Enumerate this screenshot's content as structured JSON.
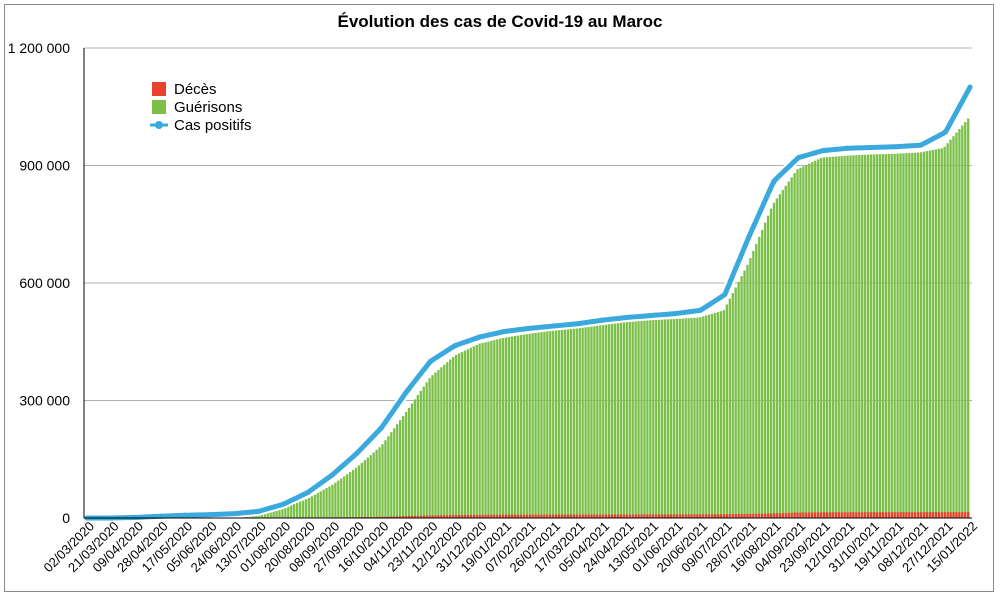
{
  "chart_data": {
    "type": "bar",
    "title": "Évolution des cas de Covid-19 au Maroc",
    "xlabel": "",
    "ylabel": "",
    "ylim": [
      0,
      1200000
    ],
    "y_ticks": [
      {
        "value": 0,
        "label": "0"
      },
      {
        "value": 300000,
        "label": "300 000"
      },
      {
        "value": 600000,
        "label": "600 000"
      },
      {
        "value": 900000,
        "label": "900 000"
      },
      {
        "value": 1200000,
        "label": "1 200 000"
      }
    ],
    "grid": true,
    "legend_placement": "top-left",
    "x_tick_labels": [
      "02/03/2020",
      "21/03/2020",
      "09/04/2020",
      "28/04/2020",
      "17/05/2020",
      "05/06/2020",
      "24/06/2020",
      "13/07/2020",
      "01/08/2020",
      "20/08/2020",
      "08/09/2020",
      "27/09/2020",
      "16/10/2020",
      "04/11/2020",
      "23/11/2020",
      "12/12/2020",
      "31/12/2020",
      "19/01/2021",
      "07/02/2021",
      "26/02/2021",
      "17/03/2021",
      "05/04/2021",
      "24/04/2021",
      "13/05/2021",
      "01/06/2021",
      "20/06/2021",
      "09/07/2021",
      "28/07/2021",
      "16/08/2021",
      "04/09/2021",
      "23/09/2021",
      "12/10/2021",
      "31/10/2021",
      "19/11/2021",
      "08/12/2021",
      "27/12/2021",
      "15/01/2022"
    ],
    "series": [
      {
        "name": "Décès",
        "kind": "bar",
        "color": "#e8412c",
        "values": [
          0,
          0,
          0,
          0,
          0,
          0,
          0,
          0,
          0,
          1000,
          1500,
          2000,
          3000,
          5000,
          6500,
          7500,
          8000,
          8400,
          8600,
          8700,
          8800,
          8900,
          9000,
          9100,
          9200,
          9400,
          9600,
          10500,
          11500,
          14000,
          14500,
          14700,
          14800,
          14850,
          14900,
          14950,
          15000
        ]
      },
      {
        "name": "Guérisons",
        "kind": "bar",
        "color": "#7cc04a",
        "values": [
          0,
          0,
          0,
          1000,
          4000,
          5000,
          8000,
          12000,
          25000,
          50000,
          85000,
          130000,
          185000,
          270000,
          360000,
          415000,
          445000,
          460000,
          470000,
          478000,
          484000,
          492000,
          500000,
          505000,
          508000,
          512000,
          530000,
          650000,
          800000,
          890000,
          920000,
          925000,
          928000,
          930000,
          933000,
          945000,
          1020000
        ]
      },
      {
        "name": "Cas positifs",
        "kind": "line",
        "color": "#3aa9dd",
        "values": [
          0,
          100,
          1500,
          4500,
          7000,
          8500,
          11000,
          17000,
          35000,
          65000,
          110000,
          165000,
          230000,
          320000,
          400000,
          440000,
          462000,
          476000,
          484000,
          490000,
          496000,
          505000,
          512000,
          517000,
          522000,
          530000,
          570000,
          720000,
          860000,
          920000,
          938000,
          944000,
          946000,
          948000,
          952000,
          985000,
          1100000
        ]
      }
    ]
  }
}
